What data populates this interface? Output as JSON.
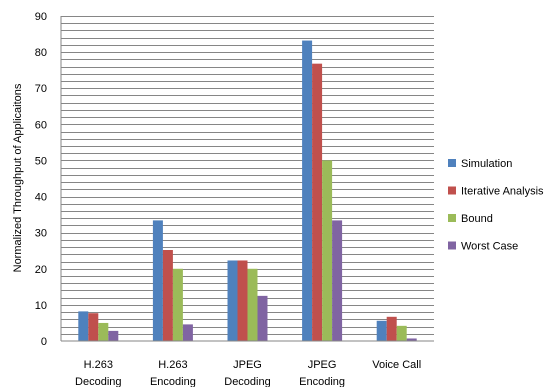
{
  "chart_data": {
    "type": "bar",
    "title": "",
    "xlabel": "",
    "ylabel": "Normalized Throughput of Applicaitons",
    "ylim": [
      0,
      90
    ],
    "yticks": [
      0,
      10,
      20,
      30,
      40,
      50,
      60,
      70,
      80,
      90
    ],
    "minor_gridline_step": 2,
    "grid": true,
    "legend_position": "right",
    "categories": [
      [
        "H.263",
        "Decoding"
      ],
      [
        "H.263",
        "Encoding"
      ],
      [
        "JPEG",
        "Decoding"
      ],
      [
        "JPEG",
        "Encoding"
      ],
      [
        "Voice Call"
      ]
    ],
    "series": [
      {
        "name": "Simulation",
        "color": "#4f81bd",
        "values": [
          8.2,
          33.4,
          22.3,
          83.2,
          5.6
        ]
      },
      {
        "name": "Iterative Analysis",
        "color": "#c0504d",
        "values": [
          7.7,
          25.2,
          22.3,
          76.8,
          6.7
        ]
      },
      {
        "name": "Bound",
        "color": "#9bbb59",
        "values": [
          5.0,
          20.0,
          20.0,
          50.0,
          4.2
        ]
      },
      {
        "name": "Worst Case",
        "color": "#8064a2",
        "values": [
          2.8,
          4.6,
          12.5,
          33.4,
          0.7
        ]
      }
    ]
  }
}
